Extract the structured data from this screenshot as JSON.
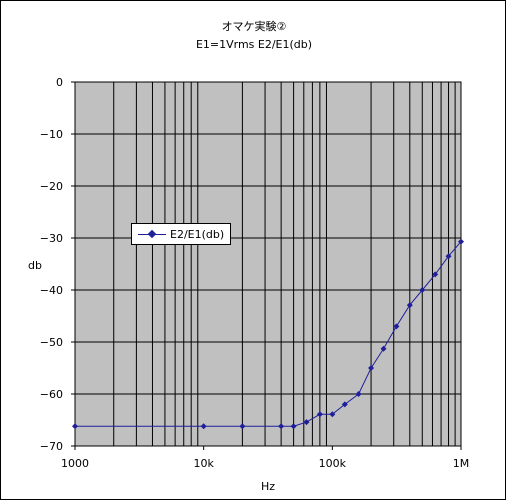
{
  "chart_data": {
    "type": "line",
    "title": "オマケ実験②",
    "subtitle": "E1=1Vrms  E2/E1(db)",
    "xlabel": "Hz",
    "ylabel": "db",
    "xscale": "log",
    "xlim": [
      1000,
      1000000
    ],
    "ylim": [
      -70,
      0
    ],
    "x_tick_labels": [
      "1000",
      "10k",
      "100k",
      "1M"
    ],
    "y_tick_labels": [
      "0",
      "−10",
      "−20",
      "−30",
      "−40",
      "−50",
      "−60",
      "−70"
    ],
    "grid": true,
    "plot_background": "#c0c0c0",
    "legend_position": "left-center",
    "series": [
      {
        "name": "E2/E1(db)",
        "color": "#1f1f9a",
        "marker": "diamond",
        "x": [
          1000,
          10000,
          20000,
          40000,
          50000,
          63000,
          80000,
          100000,
          125000,
          160000,
          200000,
          250000,
          315000,
          400000,
          500000,
          630000,
          800000,
          1000000
        ],
        "y": [
          -66.2,
          -66.2,
          -66.2,
          -66.2,
          -66.2,
          -65.4,
          -63.9,
          -63.9,
          -62.0,
          -60.0,
          -55.0,
          -51.3,
          -47.0,
          -42.9,
          -40.0,
          -37.0,
          -33.5,
          -30.7
        ]
      }
    ]
  }
}
